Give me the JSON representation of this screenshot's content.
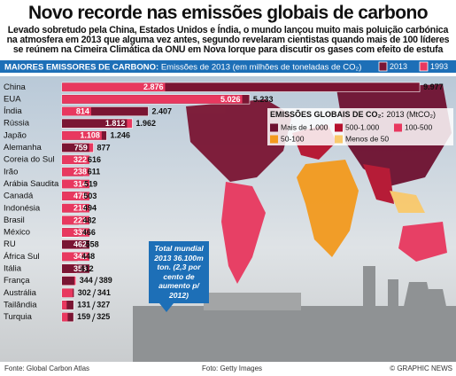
{
  "header": {
    "title": "Novo recorde nas emissões globais de carbono",
    "intro": "Levado sobretudo pela China, Estados Unidos e Índia, o mundo lançou muito mais poluição carbónica na atmosfera em 2013 que alguma vez antes, segundo revelaram cientistas quando mais de 100 líderes se reúnem na Cimeira Climática da ONU em Nova Iorque para discutir os gases com efeito de estufa"
  },
  "chart_data": {
    "type": "bar",
    "orientation": "horizontal",
    "title": "MAIORES EMISSORES DE CARBONO:",
    "subtitle": "Emissões de 2013 (em milhões de toneladas de CO₂)",
    "categories": [
      "China",
      "EUA",
      "Índia",
      "Rússia",
      "Japão",
      "Alemanha",
      "Coreia do Sul",
      "Irão",
      "Arábia Saudita",
      "Canadá",
      "Indonésia",
      "Brasil",
      "México",
      "RU",
      "África Sul",
      "Itália",
      "França",
      "Austrália",
      "Tailândia",
      "Turquia"
    ],
    "series": [
      {
        "name": "2013",
        "color": "#7a1533",
        "values": [
          9977,
          5233,
          2407,
          1812,
          1246,
          759,
          616,
          611,
          519,
          503,
          494,
          482,
          466,
          462,
          448,
          353,
          344,
          341,
          327,
          325
        ],
        "value_labels": [
          "9.977",
          "5.233",
          "2.407",
          "1.812",
          "1.246",
          "759",
          "616",
          "611",
          "519",
          "503",
          "494",
          "482",
          "466",
          "462",
          "448",
          "353",
          "344",
          "341",
          "327",
          "325"
        ]
      },
      {
        "name": "1993",
        "color": "#e8385f",
        "values": [
          2876,
          5026,
          814,
          1962,
          1108,
          877,
          322,
          238,
          314,
          478,
          218,
          221,
          330,
          558,
          342,
          412,
          389,
          302,
          131,
          159
        ],
        "value_labels": [
          "2.876",
          "5.026",
          "814",
          "1.962",
          "1.108",
          "877",
          "322",
          "238",
          "314",
          "478",
          "218",
          "221",
          "330",
          "558",
          "342",
          "412",
          "389",
          "302",
          "131",
          "159"
        ]
      }
    ],
    "xlim": [
      0,
      10000
    ]
  },
  "map_legend": {
    "title": "EMISSÕES GLOBAIS DE CO₂:",
    "subtitle": "2013 (MtCO₂)",
    "items": [
      {
        "label": "Mais de 1.000",
        "color": "#6e1030"
      },
      {
        "label": "500-1.000",
        "color": "#b5122e"
      },
      {
        "label": "100-500",
        "color": "#e8385f"
      },
      {
        "label": "50-100",
        "color": "#f39a1e"
      },
      {
        "label": "Menos de 50",
        "color": "#f9c96b"
      }
    ]
  },
  "annotation": "Total mundial 2013 36.100m ton. (2,3 por cento de aumento p/ 2012)",
  "footer": {
    "source": "Fonte: Global Carbon Atlas",
    "photo": "Foto: Getty Images",
    "credit": "© GRAPHIC NEWS"
  }
}
